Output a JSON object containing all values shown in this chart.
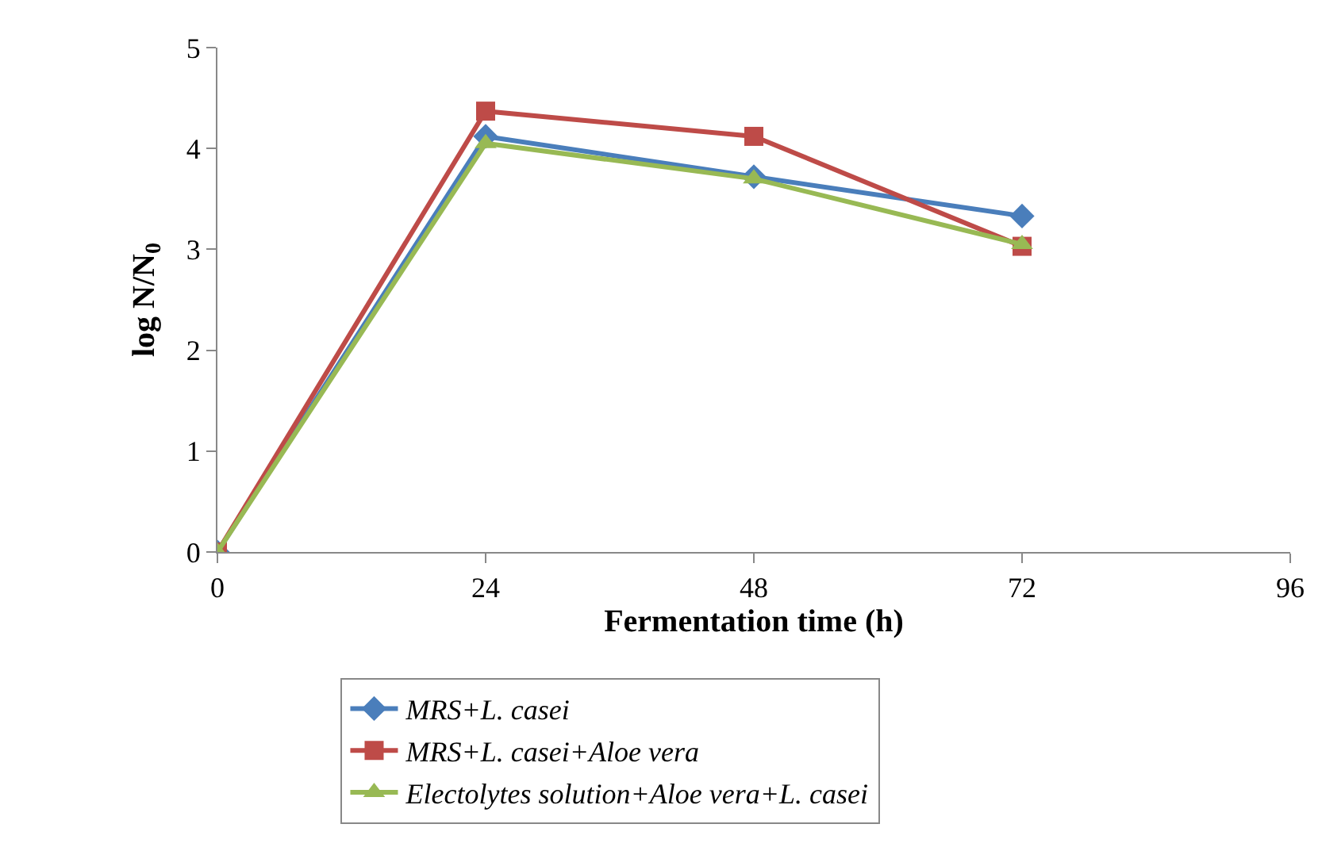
{
  "chart_data": {
    "type": "line",
    "xlabel": "Fermentation time (h)",
    "ylabel": "log N/N$_{0}$",
    "x": [
      0,
      24,
      48,
      72
    ],
    "xlim": [
      0,
      96
    ],
    "xticks": [
      0,
      24,
      48,
      72,
      96
    ],
    "ylim": [
      0,
      5
    ],
    "yticks": [
      0,
      1,
      2,
      3,
      4,
      5
    ],
    "grid": false,
    "legend": "bottom",
    "line_style": "solid",
    "series": [
      {
        "name": "MRS+L. casei",
        "color": "#4a7ebb",
        "marker": "diamond",
        "values": [
          0,
          4.12,
          3.72,
          3.33
        ]
      },
      {
        "name": "MRS+L. casei+Aloe vera",
        "color": "#be4b48",
        "marker": "square",
        "values": [
          0,
          4.37,
          4.12,
          3.03
        ]
      },
      {
        "name": "Electolytes solution+Aloe vera+L. casei",
        "color": "#98b954",
        "marker": "triangle",
        "values": [
          0,
          4.05,
          3.7,
          3.05
        ]
      }
    ]
  }
}
